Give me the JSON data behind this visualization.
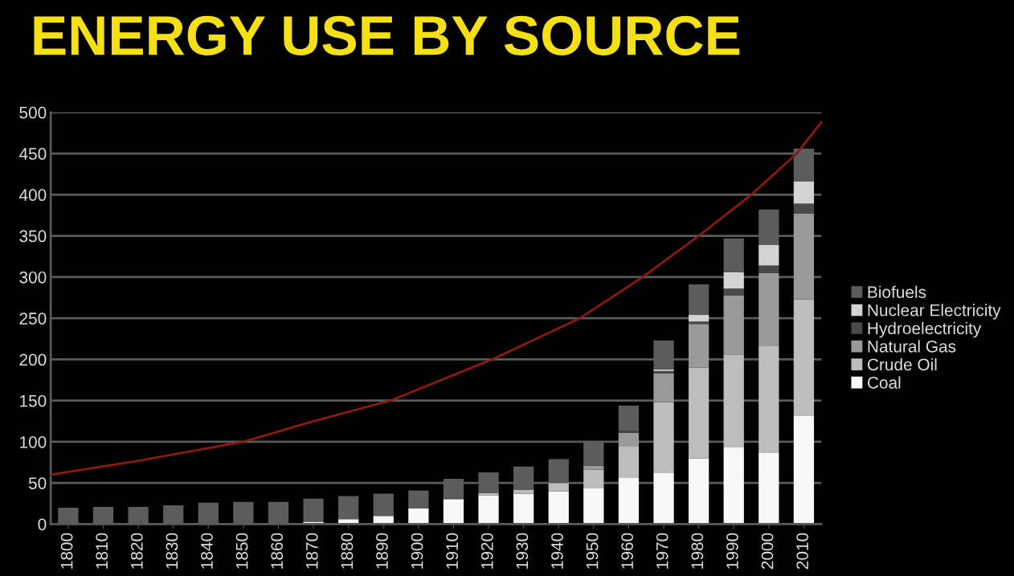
{
  "chart_data": {
    "type": "bar",
    "title": "ENERGY USE BY SOURCE",
    "stacked": true,
    "x": [
      1800,
      1810,
      1820,
      1830,
      1840,
      1850,
      1860,
      1870,
      1880,
      1890,
      1900,
      1910,
      1920,
      1930,
      1940,
      1950,
      1960,
      1970,
      1980,
      1990,
      2000,
      2010
    ],
    "series": [
      {
        "name": "Coal",
        "color": "#f8f8f8",
        "values": [
          0,
          0,
          0,
          0,
          0,
          0,
          0,
          3,
          6,
          10,
          19,
          30,
          35,
          37,
          40,
          44,
          56,
          62,
          80,
          93,
          87,
          132
        ]
      },
      {
        "name": "Crude Oil",
        "color": "#bdbdbd",
        "values": [
          0,
          0,
          0,
          0,
          0,
          0,
          0,
          0,
          0,
          0,
          0,
          1,
          3,
          5,
          10,
          22,
          38,
          86,
          110,
          113,
          129,
          141
        ]
      },
      {
        "name": "Natural Gas",
        "color": "#9a9a9a",
        "values": [
          0,
          0,
          0,
          0,
          0,
          0,
          0,
          0,
          0,
          0,
          0,
          0,
          0,
          0,
          0,
          5,
          17,
          35,
          53,
          72,
          89,
          104
        ]
      },
      {
        "name": "Hydroelectricity",
        "color": "#4a4a4a",
        "values": [
          0,
          0,
          0,
          0,
          0,
          0,
          0,
          0,
          0,
          0,
          0,
          0,
          0,
          0,
          0,
          0,
          2,
          3,
          3,
          8,
          9,
          12
        ]
      },
      {
        "name": "Nuclear Electricity",
        "color": "#d4d4d4",
        "values": [
          0,
          0,
          0,
          0,
          0,
          0,
          0,
          0,
          0,
          0,
          0,
          0,
          0,
          0,
          0,
          0,
          0,
          2,
          8,
          20,
          25,
          27
        ]
      },
      {
        "name": "Biofuels",
        "color": "#5c5c5c",
        "values": [
          20,
          21,
          21,
          23,
          26,
          27,
          27,
          28,
          28,
          27,
          22,
          24,
          25,
          28,
          29,
          30,
          31,
          35,
          37,
          41,
          43,
          40
        ]
      },
      {
        "type": "line",
        "color": "#8b1a10",
        "x": [
          1795,
          1820,
          1850,
          1870,
          1892,
          1921,
          1946,
          1964,
          1980,
          1995,
          2008,
          2015
        ],
        "values": [
          60,
          77,
          100,
          125,
          150,
          200,
          250,
          300,
          350,
          400,
          450,
          488
        ]
      }
    ],
    "xlim": [
      1795,
      2015
    ],
    "xticks": [
      1800,
      1810,
      1820,
      1830,
      1840,
      1850,
      1860,
      1870,
      1880,
      1890,
      1900,
      1910,
      1920,
      1930,
      1940,
      1950,
      1960,
      1970,
      1980,
      1990,
      2000,
      2010
    ],
    "ylim": [
      0,
      500
    ],
    "yticks": [
      0,
      50,
      100,
      150,
      200,
      250,
      300,
      350,
      400,
      450,
      500
    ],
    "grid": "y",
    "legend": "right"
  }
}
